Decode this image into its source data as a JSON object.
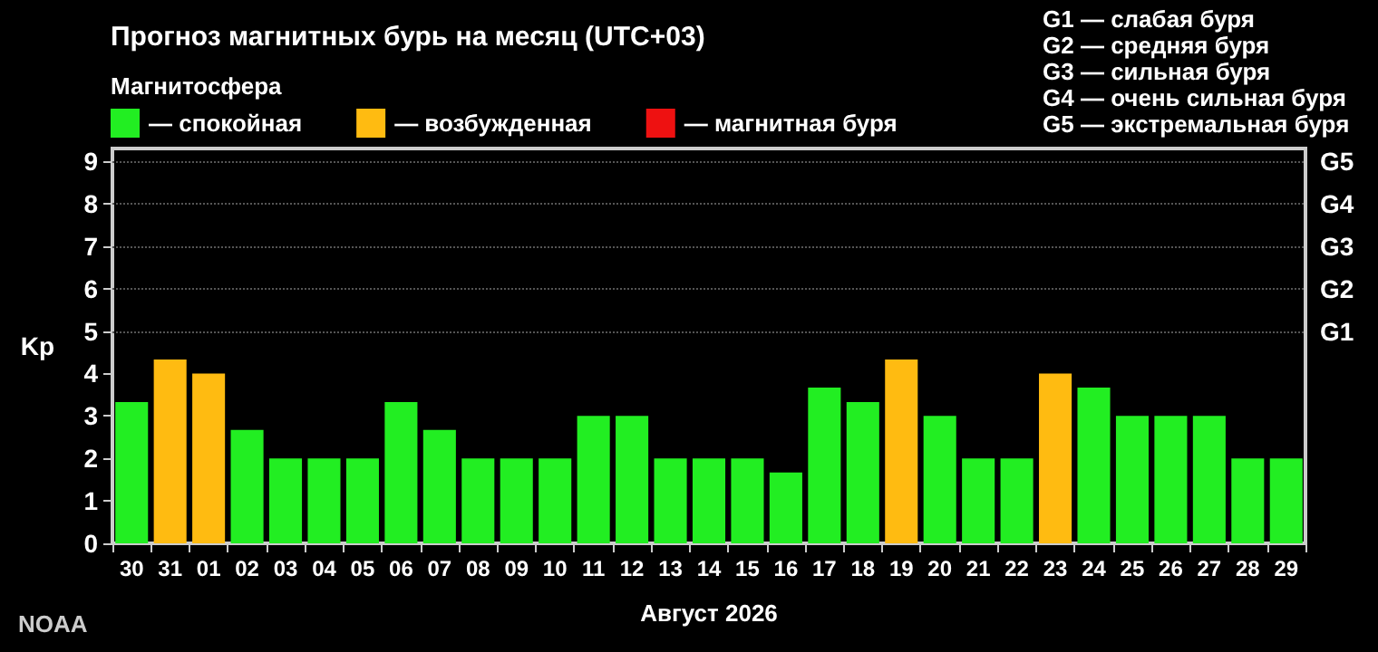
{
  "chart_data": {
    "type": "bar",
    "title": "Прогноз магнитных бурь на месяц (UTC+03)",
    "subtitle": "Магнитосфера",
    "xlabel": "Август 2026",
    "ylabel": "Kp",
    "categories": [
      "30",
      "31",
      "01",
      "02",
      "03",
      "04",
      "05",
      "06",
      "07",
      "08",
      "09",
      "10",
      "11",
      "12",
      "13",
      "14",
      "15",
      "16",
      "17",
      "18",
      "19",
      "20",
      "21",
      "22",
      "23",
      "24",
      "25",
      "26",
      "27",
      "28",
      "29"
    ],
    "stacked": true,
    "series": [
      {
        "name": "— спокойная",
        "color": "#22ee22",
        "values": [
          3.33,
          null,
          null,
          2.67,
          2,
          2,
          2,
          3.33,
          2.67,
          2,
          2,
          2,
          3,
          3,
          2,
          2,
          2,
          1.67,
          3.67,
          3.33,
          null,
          3,
          2,
          2,
          null,
          3.67,
          3,
          3,
          3,
          2,
          2
        ]
      },
      {
        "name": "— возбужденная",
        "color": "#ffbb11",
        "values": [
          null,
          4.33,
          4,
          null,
          null,
          null,
          null,
          null,
          null,
          null,
          null,
          null,
          null,
          null,
          null,
          null,
          null,
          null,
          null,
          null,
          4.33,
          null,
          null,
          null,
          4,
          null,
          null,
          null,
          null,
          null,
          null
        ]
      },
      {
        "name": "— магнитная буря",
        "color": "#ee1111",
        "values": [
          null,
          null,
          null,
          null,
          null,
          null,
          null,
          null,
          null,
          null,
          null,
          null,
          null,
          null,
          null,
          null,
          null,
          null,
          null,
          null,
          null,
          null,
          null,
          null,
          null,
          null,
          null,
          null,
          null,
          null,
          null
        ]
      }
    ],
    "ylim": [
      0,
      9.3
    ],
    "yticks": [
      0,
      1,
      2,
      3,
      4,
      5,
      6,
      7,
      8,
      9
    ],
    "ref_lines": [
      {
        "axis": "y",
        "value": 5,
        "label": "G1",
        "line_style": "dotted",
        "color": "#555555"
      },
      {
        "axis": "y",
        "value": 6,
        "label": "G2",
        "line_style": "dotted",
        "color": "#555555"
      },
      {
        "axis": "y",
        "value": 7,
        "label": "G3",
        "line_style": "dotted",
        "color": "#555555"
      },
      {
        "axis": "y",
        "value": 8,
        "label": "G4",
        "line_style": "dotted",
        "color": "#555555"
      },
      {
        "axis": "y",
        "value": 9,
        "label": "G5",
        "line_style": "dotted",
        "color": "#555555"
      }
    ],
    "legend": "top left",
    "annotations": [
      "G1 — слабая буря",
      "G2 — средняя буря",
      "G3 — сильная буря",
      "G4 — очень сильная буря",
      "G5 — экстремальная буря",
      "NOAA"
    ]
  }
}
